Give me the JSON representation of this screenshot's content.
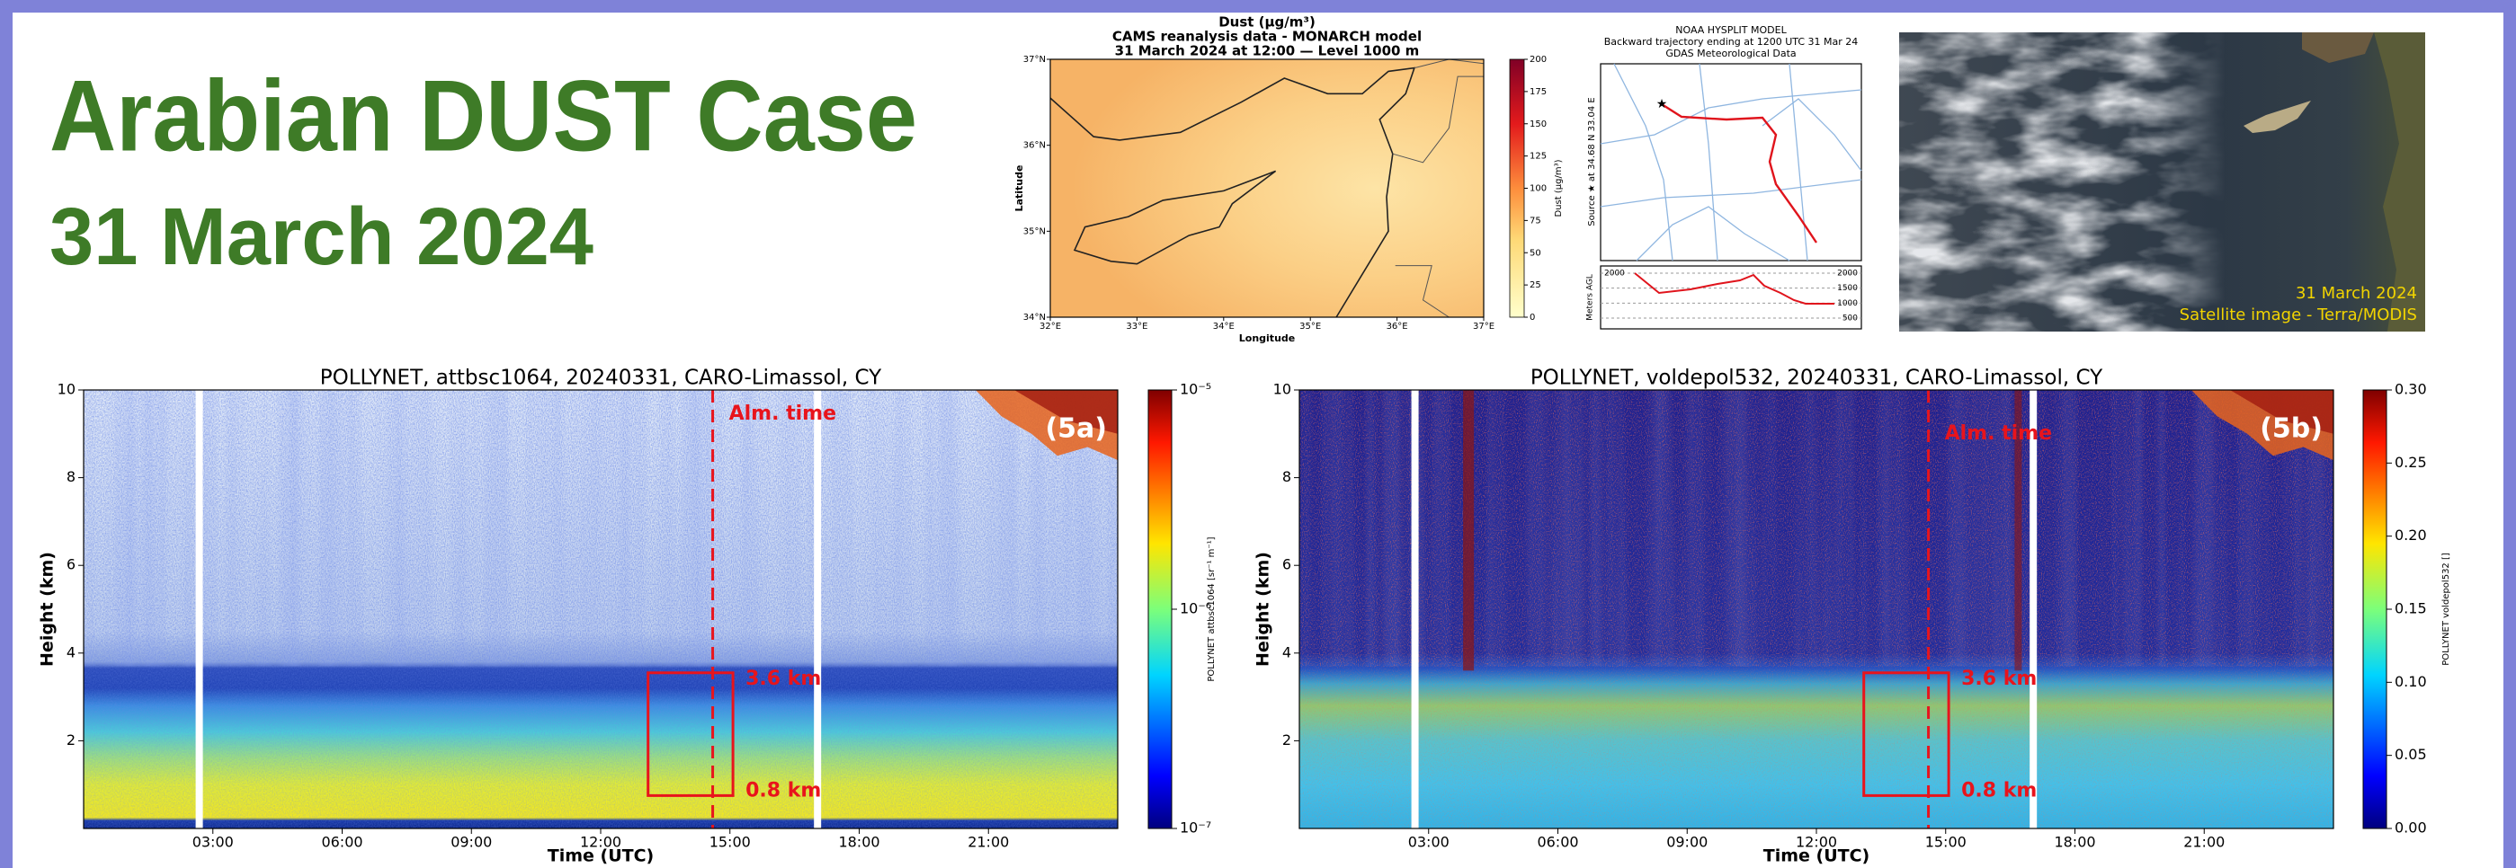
{
  "header": {
    "title": "Arabian DUST Case",
    "date": "31 March 2024"
  },
  "dust_map": {
    "title_lines": [
      "Dust (µg/m³)",
      "CAMS reanalysis data - MONARCH model",
      "31 March 2024 at 12:00 — Level 1000 m"
    ],
    "yticks": [
      "37°N",
      "36°N",
      "35°N",
      "34°N"
    ],
    "xticks": [
      "32°E",
      "33°E",
      "34°E",
      "35°E",
      "36°E",
      "37°E"
    ],
    "xlabel": "Longitude",
    "ylabel": "Latitude",
    "colorbar_ticks": [
      "200",
      "175",
      "150",
      "125",
      "100",
      "75",
      "50",
      "25",
      "0"
    ],
    "colorbar_label": "Dust (µg/m³)"
  },
  "hysplit": {
    "title_lines": [
      "NOAA HYSPLIT MODEL",
      "Backward trajectory ending at 1200 UTC 31 Mar 24",
      "GDAS Meteorological Data"
    ],
    "side_label": "Source ★ at 34.68 N 33.04 E",
    "lower_ylabel": "Meters AGL",
    "lower_ticks": [
      "2000",
      "1500",
      "1000",
      "500"
    ],
    "lower_left_label": "2000"
  },
  "satellite": {
    "date": "31 March 2024",
    "caption": "Satellite image - Terra/MODIS"
  },
  "lidar": [
    {
      "title": "POLLYNET, attbsc1064, 20240331, CARO-Limassol, CY",
      "panel": "(5a)",
      "xlabel": "Time (UTC)",
      "ylabel": "Height (km)",
      "xticks": [
        "03:00",
        "06:00",
        "09:00",
        "12:00",
        "15:00",
        "18:00",
        "21:00"
      ],
      "yticks": [
        "2",
        "4",
        "6",
        "8",
        "10"
      ],
      "colorbar_ticks": [
        "10⁻⁵",
        "10⁻⁶",
        "10⁻⁷"
      ],
      "colorbar_label": "POLLYNET attbsc1064 [sr⁻¹ m⁻¹]",
      "annotations": {
        "time": "Alm. time",
        "top": "3.6 km",
        "bottom": "0.8 km"
      }
    },
    {
      "title": "POLLYNET, voldepol532, 20240331, CARO-Limassol, CY",
      "panel": "(5b)",
      "xlabel": "Time (UTC)",
      "ylabel": "Height (km)",
      "xticks": [
        "03:00",
        "06:00",
        "09:00",
        "12:00",
        "15:00",
        "18:00",
        "21:00"
      ],
      "yticks": [
        "2",
        "4",
        "6",
        "8",
        "10"
      ],
      "colorbar_ticks": [
        "0.30",
        "0.25",
        "0.20",
        "0.15",
        "0.10",
        "0.05",
        "0.00"
      ],
      "colorbar_label": "POLLYNET voldepol532 []",
      "annotations": {
        "time": "Alm. time",
        "top": "3.6 km",
        "bottom": "0.8 km"
      }
    }
  ]
}
